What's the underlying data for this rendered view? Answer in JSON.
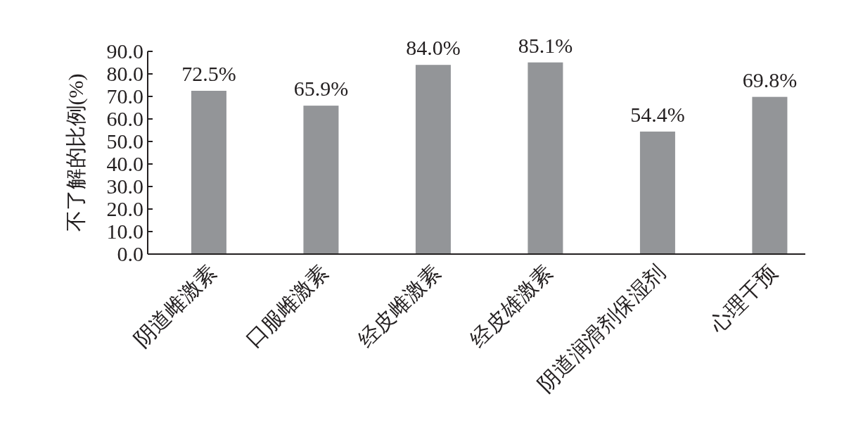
{
  "chart_data": {
    "type": "bar",
    "ylabel": "不了解的比例(%)",
    "categories": [
      "阴道雌激素",
      "口服雌激素",
      "经皮雌激素",
      "经皮雄激素",
      "阴道润滑剂保湿剂",
      "心理干预"
    ],
    "values": [
      72.5,
      65.9,
      84.0,
      85.1,
      54.4,
      69.8
    ],
    "value_labels": [
      "72.5%",
      "65.9%",
      "84.0%",
      "85.1%",
      "54.4%",
      "69.8%"
    ],
    "color": "#939598",
    "ylim": [
      0,
      90
    ],
    "yticks": [
      {
        "value": 0,
        "label": "0.0"
      },
      {
        "value": 10,
        "label": "10.0"
      },
      {
        "value": 20,
        "label": "20.0"
      },
      {
        "value": 30,
        "label": "30.0"
      },
      {
        "value": 40,
        "label": "40.0"
      },
      {
        "value": 50,
        "label": "50.0"
      },
      {
        "value": 60,
        "label": "60.0"
      },
      {
        "value": 70,
        "label": "70.0"
      },
      {
        "value": 80,
        "label": "80.0"
      },
      {
        "value": 90,
        "label": "90.0"
      }
    ],
    "grid": false
  }
}
